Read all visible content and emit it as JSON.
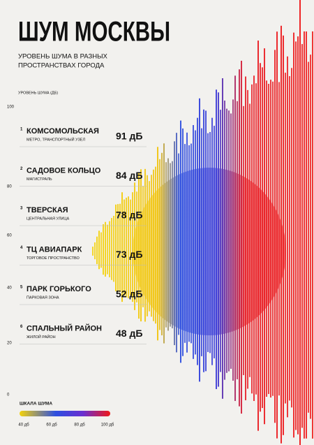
{
  "header": {
    "title": "ШУМ МОСКВЫ",
    "subtitle_lines": [
      "УРОВЕНЬ ШУМА В РАЗНЫХ",
      "ПРОСТРАНСТВАХ ГОРОДА"
    ]
  },
  "axis": {
    "label": "УРОВЕНЬ ШУМА (ДБ)",
    "ticks": [
      "100",
      "80",
      "60",
      "40",
      "20",
      "0"
    ]
  },
  "items": [
    {
      "rank": "1",
      "name": "КОМСОМОЛЬСКАЯ",
      "description": "МЕТРО, ТРАНСПОРТНЫЙ УЗЕЛ",
      "level": "91 дБ"
    },
    {
      "rank": "2",
      "name": "САДОВОЕ КОЛЬЦО",
      "description": "МАГИСТРАЛЬ",
      "level": "84 дБ"
    },
    {
      "rank": "3",
      "name": "ТВЕРСКАЯ",
      "description": "ЦЕНТРАЛЬНАЯ УЛИЦА",
      "level": "78 дБ"
    },
    {
      "rank": "4",
      "name": "ТЦ АВИАПАРК",
      "description": "ТОРГОВОЕ ПРОСТРАНСТВО",
      "level": "73 дБ"
    },
    {
      "rank": "5",
      "name": "ПАРК ГОРЬКОГО",
      "description": "ПАРКОВАЯ ЗОНА",
      "level": "52 дБ"
    },
    {
      "rank": "6",
      "name": "СПАЛЬНЫЙ РАЙОН",
      "description": "ЖИЛОЙ РАЙОН",
      "level": "48 дБ"
    }
  ],
  "legend": {
    "title": "ШКАЛА ШУМА",
    "labels": [
      "40 дб",
      "60 дб",
      "80 дб",
      "100 дб"
    ]
  }
}
